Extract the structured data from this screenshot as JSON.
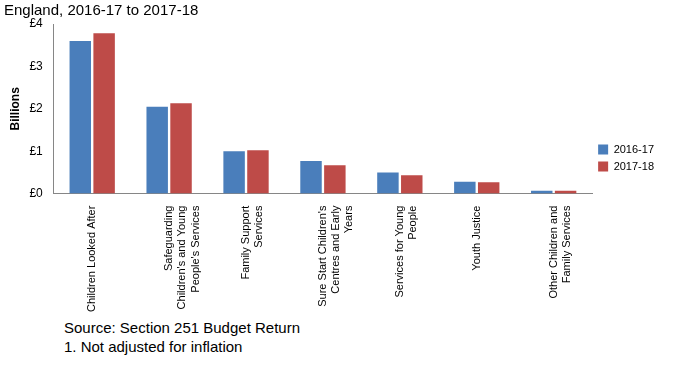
{
  "chart_data": {
    "type": "bar",
    "title": "England, 2016-17 to 2017-18",
    "y_label": "Billions",
    "categories": [
      "Children Looked After",
      "Safeguarding Children's and Young People's Services",
      "Family Support Services",
      "Sure Start Children's Centres and Early Years",
      "Services for Young People",
      "Youth Justice",
      "Other Children and Family Services"
    ],
    "series": [
      {
        "name": "2016-17",
        "color": "#4a7ebb",
        "values": [
          3.6,
          2.05,
          1.0,
          0.77,
          0.5,
          0.28,
          0.07
        ]
      },
      {
        "name": "2017-18",
        "color": "#be4b48",
        "values": [
          3.78,
          2.13,
          1.02,
          0.67,
          0.43,
          0.27,
          0.07
        ]
      }
    ],
    "ylim": [
      0,
      4
    ],
    "yticks": [
      {
        "value": 0,
        "label": "£0"
      },
      {
        "value": 1,
        "label": "£1"
      },
      {
        "value": 2,
        "label": "£2"
      },
      {
        "value": 3,
        "label": "£3"
      },
      {
        "value": 4,
        "label": "£4"
      }
    ],
    "grid": false,
    "legend": "right",
    "annotations": [
      "Source: Section 251 Budget Return",
      "1. Not adjusted for inflation"
    ]
  }
}
